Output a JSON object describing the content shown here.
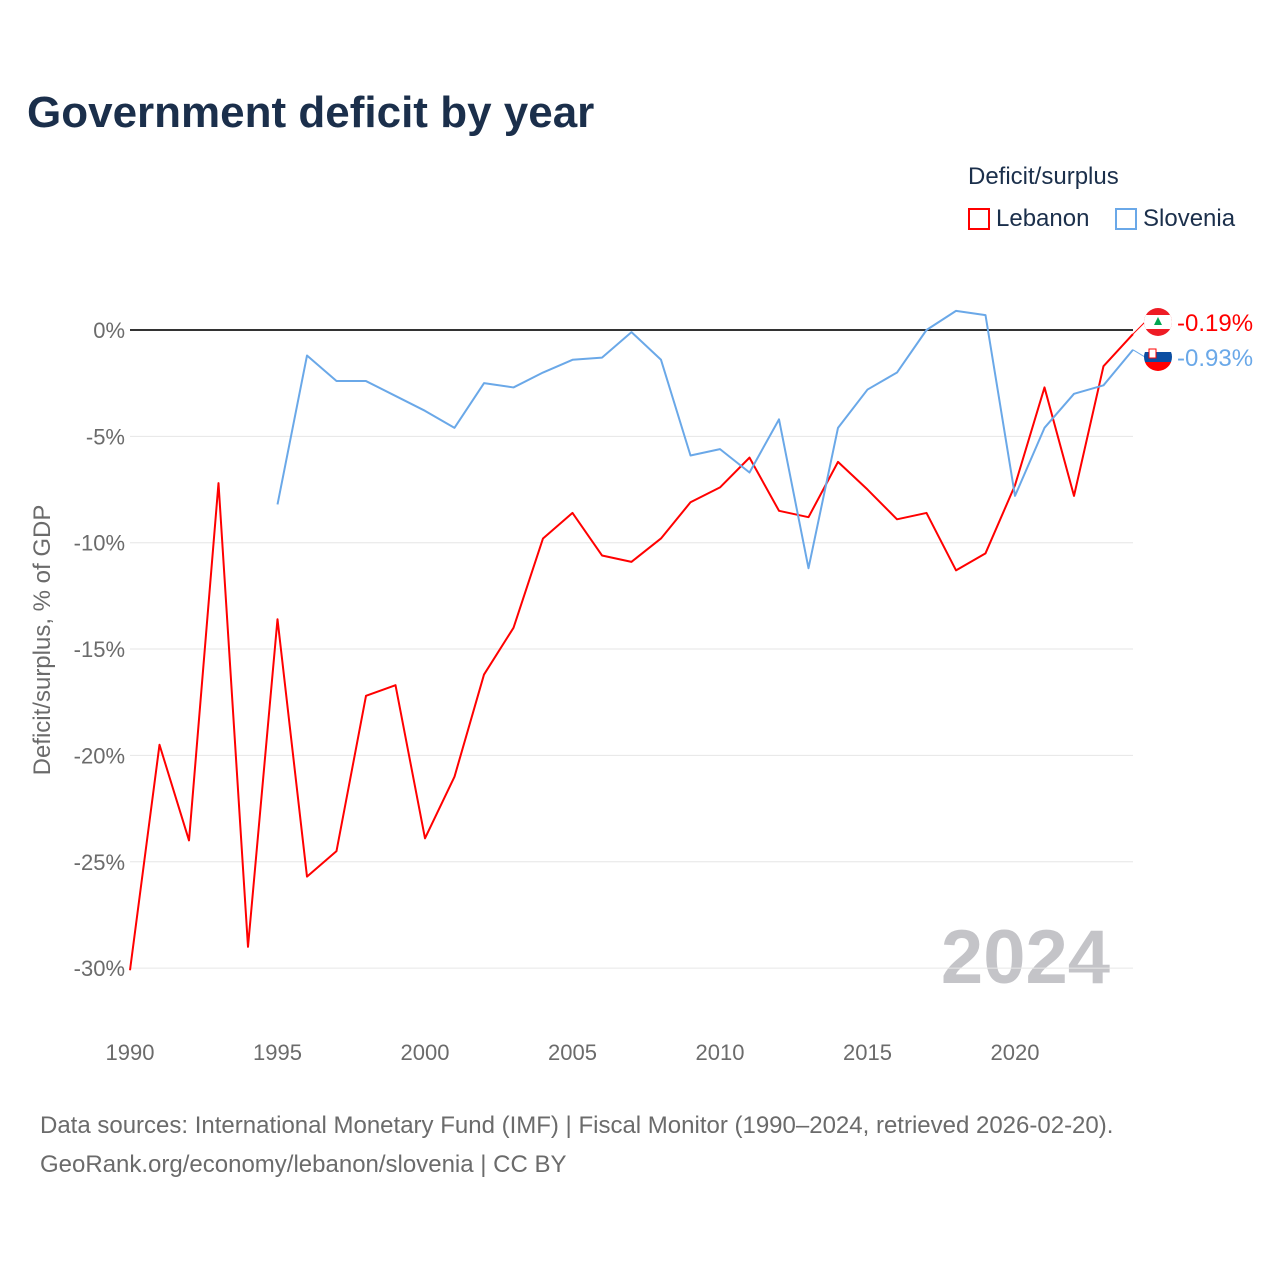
{
  "title": "Government deficit by year",
  "legend": {
    "title": "Deficit/surplus",
    "items": [
      {
        "label": "Lebanon",
        "color": "#ff0000"
      },
      {
        "label": "Slovenia",
        "color": "#6aa8e8"
      }
    ]
  },
  "year_watermark": "2024",
  "footer": {
    "line1": "Data sources: International Monetary Fund (IMF) | Fiscal Monitor (1990–2024, retrieved 2026-02-20).",
    "line2": "GeoRank.org/economy/lebanon/slovenia | CC BY"
  },
  "chart_data": {
    "type": "line",
    "title": "Government deficit by year",
    "xlabel": "",
    "ylabel": "Deficit/surplus, % of GDP",
    "xlim": [
      1990,
      2024
    ],
    "ylim": [
      -30,
      0
    ],
    "x_ticks": [
      "1990",
      "1995",
      "2000",
      "2005",
      "2010",
      "2015",
      "2020"
    ],
    "y_ticks": [
      "0%",
      "-5%",
      "-10%",
      "-15%",
      "-20%",
      "-25%",
      "-30%"
    ],
    "series": [
      {
        "name": "Lebanon",
        "color": "#ff0000",
        "end_label": "-0.19%",
        "start_year": 1990,
        "values": [
          -30.1,
          -19.5,
          -24.0,
          -7.2,
          -29.0,
          -13.6,
          -25.7,
          -24.5,
          -17.2,
          -16.7,
          -23.9,
          -21.0,
          -16.2,
          -14.0,
          -9.8,
          -8.6,
          -10.6,
          -10.9,
          -9.8,
          -8.1,
          -7.4,
          -6.0,
          -8.5,
          -8.8,
          -6.2,
          -7.5,
          -8.9,
          -8.6,
          -11.3,
          -10.5,
          -7.3,
          -2.7,
          -7.8,
          -1.7,
          -0.19
        ]
      },
      {
        "name": "Slovenia",
        "color": "#6aa8e8",
        "end_label": "-0.93%",
        "start_year": 1995,
        "values": [
          -8.2,
          -1.2,
          -2.4,
          -2.4,
          -3.1,
          -3.8,
          -4.6,
          -2.5,
          -2.7,
          -2.0,
          -1.4,
          -1.3,
          -0.1,
          -1.4,
          -5.9,
          -5.6,
          -6.7,
          -4.2,
          -11.2,
          -4.6,
          -2.8,
          -2.0,
          0.0,
          0.9,
          0.7,
          -7.8,
          -4.6,
          -3.0,
          -2.6,
          -0.93
        ]
      }
    ]
  }
}
